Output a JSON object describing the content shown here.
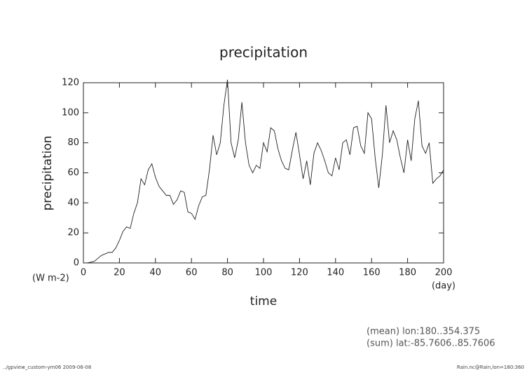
{
  "chart_data": {
    "type": "line",
    "title": "precipitation",
    "y_label": "precipitation",
    "y_unit": "(W m-2)",
    "x_label": "time",
    "x_unit": "(day)",
    "annotations": [
      "(mean) lon:180..354.375",
      "(sum) lat:-85.7606..85.7606"
    ],
    "footer_left": "../gpview_custom-ym06   2009-06-08",
    "footer_right": "Rain.nc@Rain,lon=180:360",
    "xlim": [
      0,
      200
    ],
    "xticks": [
      0,
      20,
      40,
      60,
      80,
      100,
      120,
      140,
      160,
      180,
      200
    ],
    "ylim": [
      0,
      120
    ],
    "yticks": [
      0,
      20,
      40,
      60,
      80,
      100,
      120
    ],
    "x": [
      0,
      2,
      4,
      6,
      8,
      10,
      12,
      14,
      16,
      18,
      20,
      22,
      24,
      26,
      28,
      30,
      32,
      34,
      36,
      38,
      40,
      42,
      44,
      46,
      48,
      50,
      52,
      54,
      56,
      58,
      60,
      62,
      64,
      66,
      68,
      70,
      72,
      74,
      76,
      78,
      80,
      82,
      84,
      86,
      88,
      90,
      92,
      94,
      96,
      98,
      100,
      102,
      104,
      106,
      108,
      110,
      112,
      114,
      116,
      118,
      120,
      122,
      124,
      126,
      128,
      130,
      132,
      134,
      136,
      138,
      140,
      142,
      144,
      146,
      148,
      150,
      152,
      154,
      156,
      158,
      160,
      162,
      164,
      166,
      168,
      170,
      172,
      174,
      176,
      178,
      180,
      182,
      184,
      186,
      188,
      190,
      192,
      194,
      196,
      198,
      200
    ],
    "series": [
      {
        "name": "precipitation",
        "color": "#222222",
        "values": [
          0,
          0,
          0.5,
          1,
          3,
          5,
          6,
          7,
          7,
          10,
          15,
          21,
          24,
          23,
          33,
          40,
          56,
          52,
          62,
          66,
          57,
          51,
          48,
          45,
          45,
          39,
          42,
          48,
          47,
          34,
          33,
          29,
          38,
          44,
          45,
          62,
          85,
          72,
          80,
          105,
          122,
          80,
          70,
          82,
          107,
          80,
          65,
          60,
          65,
          63,
          80,
          74,
          90,
          88,
          76,
          68,
          63,
          62,
          75,
          87,
          72,
          56,
          68,
          52,
          73,
          80,
          75,
          68,
          60,
          58,
          70,
          62,
          80,
          82,
          72,
          90,
          91,
          78,
          73,
          100,
          96,
          70,
          50,
          72,
          105,
          80,
          88,
          82,
          70,
          60,
          82,
          68,
          96,
          108,
          78,
          73,
          80,
          53,
          56,
          58,
          62
        ]
      }
    ]
  }
}
